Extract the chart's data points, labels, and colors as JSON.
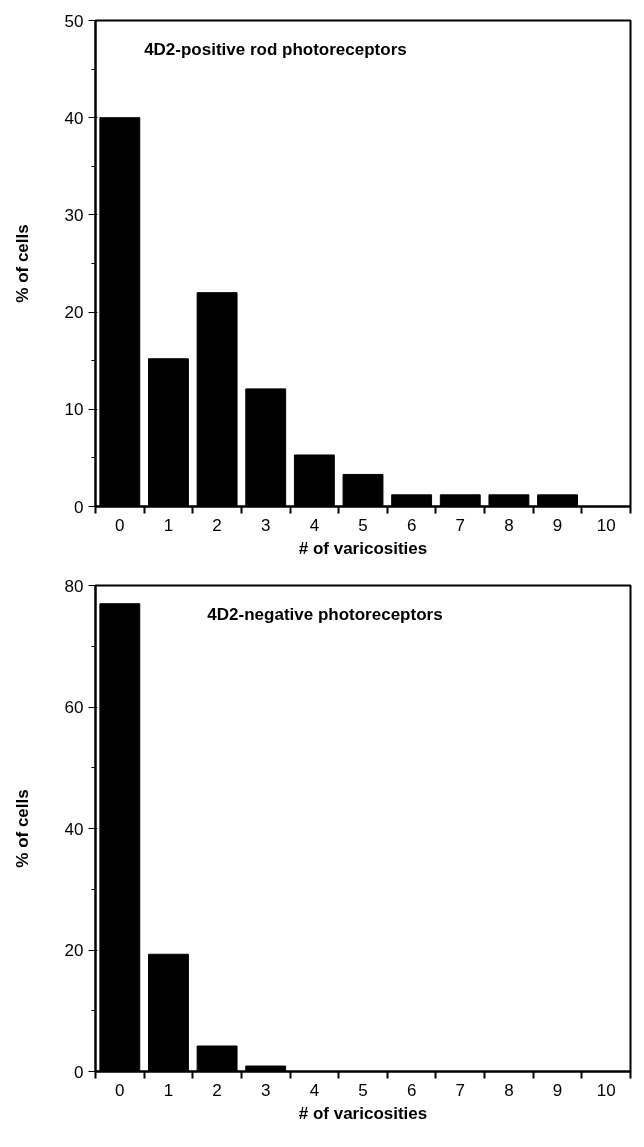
{
  "chart_data": [
    {
      "type": "bar",
      "title": "4D2-positive rod photoreceptors",
      "xlabel": "# of varicosities",
      "ylabel": "% of cells",
      "categories": [
        "0",
        "1",
        "2",
        "3",
        "4",
        "5",
        "6",
        "7",
        "8",
        "9",
        "10"
      ],
      "values": [
        40,
        15.2,
        22,
        12.1,
        5.3,
        3.3,
        1.2,
        1.2,
        1.2,
        1.2,
        0
      ],
      "color": "#000000",
      "ylim": [
        0,
        50
      ],
      "yticks": [
        0,
        10,
        20,
        30,
        40,
        50
      ],
      "grid": false
    },
    {
      "type": "bar",
      "title": "4D2-negative photoreceptors",
      "xlabel": "# of varicosities",
      "ylabel": "% of cells",
      "categories": [
        "0",
        "1",
        "2",
        "3",
        "4",
        "5",
        "6",
        "7",
        "8",
        "9",
        "10"
      ],
      "values": [
        77,
        19.3,
        4.2,
        0.9,
        0,
        0,
        0,
        0,
        0,
        0,
        0
      ],
      "color": "#000000",
      "ylim": [
        0,
        80
      ],
      "yticks": [
        0,
        20,
        40,
        60,
        80
      ],
      "grid": false
    }
  ]
}
